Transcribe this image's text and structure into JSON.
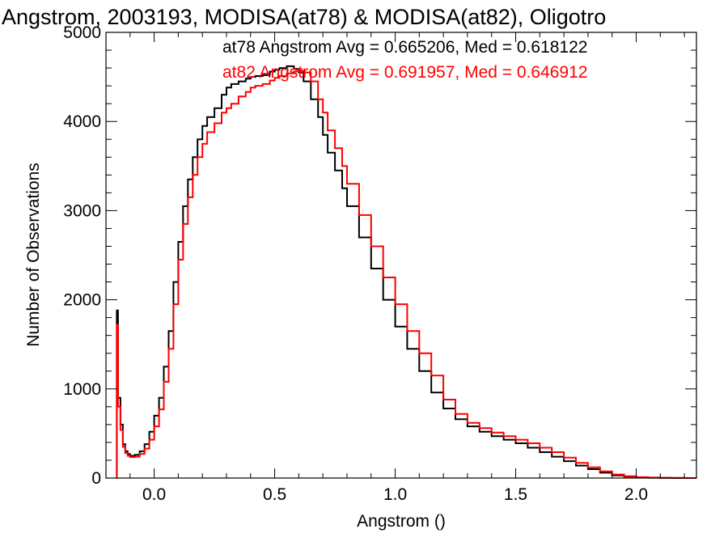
{
  "chart_data": {
    "type": "line",
    "title": "Angstrom, 2003193, MODISA(at78) & MODISA(at82), Oligotro",
    "xlabel": "Angstrom ()",
    "ylabel": "Number of Observations",
    "xlim": [
      -0.2,
      2.25
    ],
    "ylim": [
      0,
      5000
    ],
    "x_ticks": [
      0.0,
      0.5,
      1.0,
      1.5,
      2.0
    ],
    "x_tick_labels": [
      "0.0",
      "0.5",
      "1.0",
      "1.5",
      "2.0"
    ],
    "y_ticks": [
      0,
      1000,
      2000,
      3000,
      4000,
      5000
    ],
    "y_tick_labels": [
      "0",
      "1000",
      "2000",
      "3000",
      "4000",
      "5000"
    ],
    "grid": false,
    "legend_placement": "top-right",
    "annotations": [
      "at78 Angstrom Avg = 0.665206, Med = 0.618122",
      "at82 Angstrom Avg = 0.691957, Med = 0.646912"
    ],
    "series": [
      {
        "color": "#000000",
        "x": [
          -0.155,
          -0.15,
          -0.14,
          -0.13,
          -0.12,
          -0.11,
          -0.1,
          -0.08,
          -0.06,
          -0.04,
          -0.02,
          0.0,
          0.02,
          0.04,
          0.06,
          0.08,
          0.1,
          0.12,
          0.14,
          0.16,
          0.18,
          0.2,
          0.22,
          0.25,
          0.28,
          0.3,
          0.32,
          0.35,
          0.38,
          0.4,
          0.42,
          0.45,
          0.48,
          0.5,
          0.52,
          0.55,
          0.58,
          0.6,
          0.62,
          0.65,
          0.68,
          0.7,
          0.72,
          0.75,
          0.78,
          0.8,
          0.85,
          0.9,
          0.95,
          1.0,
          1.05,
          1.1,
          1.15,
          1.2,
          1.25,
          1.3,
          1.35,
          1.4,
          1.45,
          1.5,
          1.55,
          1.6,
          1.65,
          1.7,
          1.75,
          1.8,
          1.85,
          1.9,
          1.95,
          2.0,
          2.05,
          2.1,
          2.15,
          2.2,
          2.25
        ],
        "y": [
          1880,
          900,
          600,
          380,
          300,
          270,
          250,
          260,
          300,
          380,
          520,
          700,
          900,
          1250,
          1650,
          2200,
          2650,
          3050,
          3350,
          3600,
          3800,
          3950,
          4050,
          4150,
          4300,
          4380,
          4420,
          4450,
          4480,
          4500,
          4510,
          4520,
          4560,
          4580,
          4600,
          4620,
          4590,
          4550,
          4450,
          4250,
          4050,
          3850,
          3650,
          3450,
          3250,
          3050,
          2700,
          2350,
          2000,
          1700,
          1450,
          1200,
          960,
          780,
          660,
          580,
          520,
          470,
          430,
          390,
          340,
          290,
          240,
          190,
          140,
          100,
          60,
          30,
          15,
          8,
          4,
          2,
          1,
          0,
          0
        ]
      },
      {
        "color": "#ff0000",
        "x": [
          -0.155,
          -0.15,
          -0.14,
          -0.13,
          -0.12,
          -0.11,
          -0.1,
          -0.08,
          -0.06,
          -0.04,
          -0.02,
          0.0,
          0.02,
          0.04,
          0.06,
          0.08,
          0.1,
          0.12,
          0.14,
          0.16,
          0.18,
          0.2,
          0.22,
          0.25,
          0.28,
          0.3,
          0.32,
          0.35,
          0.38,
          0.4,
          0.42,
          0.45,
          0.48,
          0.5,
          0.52,
          0.55,
          0.58,
          0.6,
          0.62,
          0.65,
          0.68,
          0.7,
          0.72,
          0.75,
          0.78,
          0.8,
          0.85,
          0.9,
          0.95,
          1.0,
          1.05,
          1.1,
          1.15,
          1.2,
          1.25,
          1.3,
          1.35,
          1.4,
          1.45,
          1.5,
          1.55,
          1.6,
          1.65,
          1.7,
          1.75,
          1.8,
          1.85,
          1.9,
          1.95,
          2.0,
          2.05,
          2.1,
          2.15,
          2.2,
          2.25
        ],
        "y": [
          1720,
          800,
          540,
          350,
          280,
          250,
          235,
          240,
          270,
          330,
          430,
          580,
          770,
          1080,
          1450,
          1950,
          2450,
          2850,
          3150,
          3400,
          3600,
          3750,
          3880,
          3980,
          4100,
          4150,
          4200,
          4280,
          4330,
          4380,
          4400,
          4420,
          4460,
          4490,
          4510,
          4540,
          4560,
          4570,
          4550,
          4450,
          4250,
          4100,
          3900,
          3700,
          3500,
          3300,
          2950,
          2600,
          2250,
          1950,
          1650,
          1400,
          1150,
          880,
          720,
          620,
          560,
          510,
          470,
          430,
          390,
          340,
          290,
          230,
          170,
          120,
          75,
          40,
          20,
          10,
          5,
          2,
          1,
          0,
          0
        ]
      }
    ]
  }
}
